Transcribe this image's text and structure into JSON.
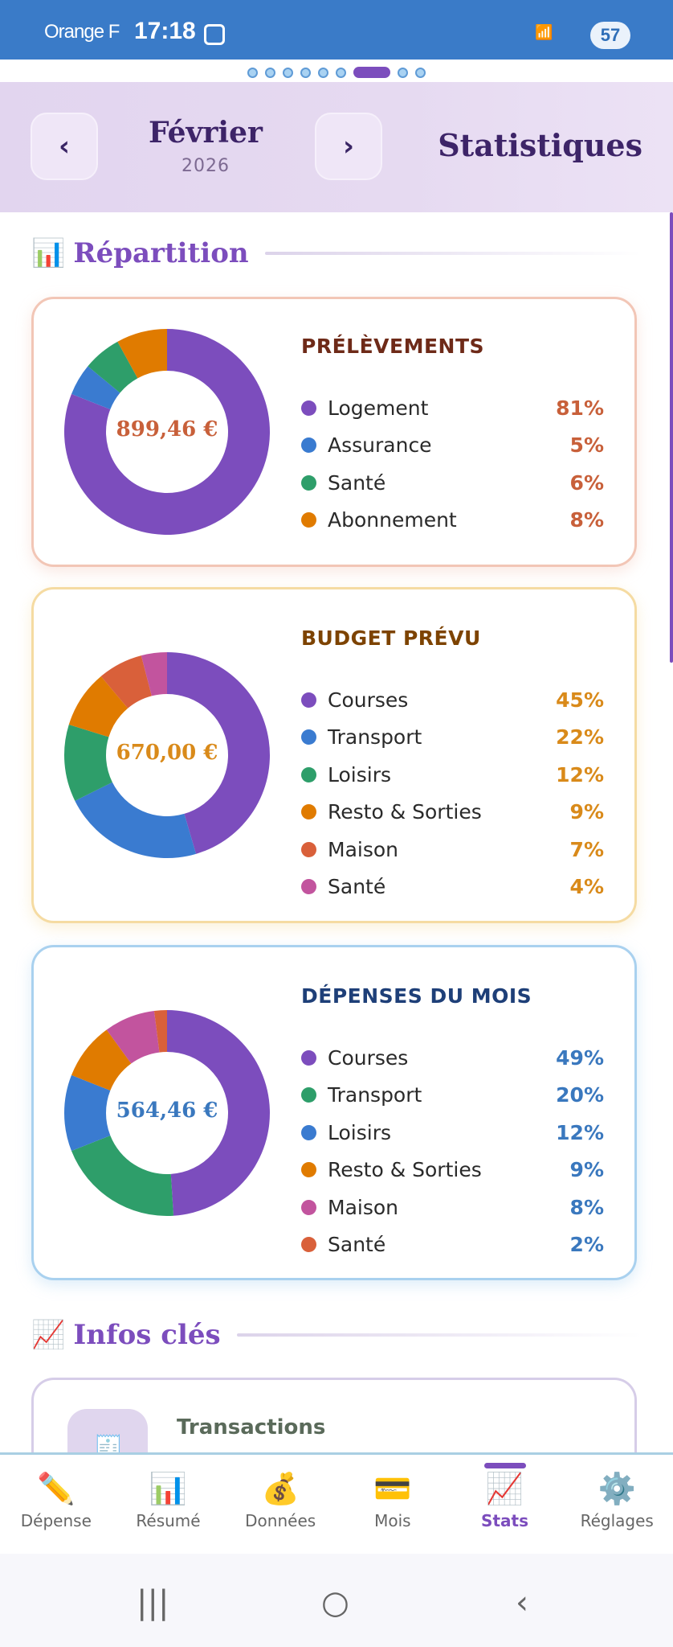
{
  "status_bar": {
    "carrier": "Orange F",
    "time": "17:18",
    "battery": "57"
  },
  "pager": {
    "count": 9,
    "active_index": 6
  },
  "header": {
    "prev_label": "‹",
    "next_label": "›",
    "month": "Février",
    "year": "2026",
    "title": "Statistiques"
  },
  "sections": {
    "repartition": {
      "icon": "📊",
      "title": "Répartition"
    },
    "infos": {
      "icon": "📈",
      "title": "Infos clés"
    }
  },
  "colors": {
    "purple": "#7c4dbd",
    "blue": "#3a7bd0",
    "green": "#2e9e6a",
    "orange": "#e07b00",
    "red": "#d9603a",
    "pink": "#c2549e"
  },
  "cards": [
    {
      "title": "PRÉLÈVEMENTS",
      "total": "899,46 €",
      "title_color": "#6e2a18",
      "accent": "#c8603a",
      "border": "#f2c6b6",
      "items": [
        {
          "label": "Logement",
          "pct": 81,
          "pct_label": "81%",
          "color": "#7c4dbd"
        },
        {
          "label": "Assurance",
          "pct": 5,
          "pct_label": "5%",
          "color": "#3a7bd0"
        },
        {
          "label": "Santé",
          "pct": 6,
          "pct_label": "6%",
          "color": "#2e9e6a"
        },
        {
          "label": "Abonnement",
          "pct": 8,
          "pct_label": "8%",
          "color": "#e07b00"
        }
      ]
    },
    {
      "title": "BUDGET PRÉVU",
      "total": "670,00 €",
      "title_color": "#7d4300",
      "accent": "#d98a1a",
      "border": "#f5dba2",
      "items": [
        {
          "label": "Courses",
          "pct": 45,
          "pct_label": "45%",
          "color": "#7c4dbd"
        },
        {
          "label": "Transport",
          "pct": 22,
          "pct_label": "22%",
          "color": "#3a7bd0"
        },
        {
          "label": "Loisirs",
          "pct": 12,
          "pct_label": "12%",
          "color": "#2e9e6a"
        },
        {
          "label": "Resto & Sorties",
          "pct": 9,
          "pct_label": "9%",
          "color": "#e07b00"
        },
        {
          "label": "Maison",
          "pct": 7,
          "pct_label": "7%",
          "color": "#d9603a"
        },
        {
          "label": "Santé",
          "pct": 4,
          "pct_label": "4%",
          "color": "#c2549e"
        }
      ]
    },
    {
      "title": "DÉPENSES DU MOIS",
      "total": "564,46 €",
      "title_color": "#1e3f78",
      "accent": "#3a78be",
      "border": "#a9d1ef",
      "items": [
        {
          "label": "Courses",
          "pct": 49,
          "pct_label": "49%",
          "color": "#7c4dbd"
        },
        {
          "label": "Transport",
          "pct": 20,
          "pct_label": "20%",
          "color": "#2e9e6a"
        },
        {
          "label": "Loisirs",
          "pct": 12,
          "pct_label": "12%",
          "color": "#3a7bd0"
        },
        {
          "label": "Resto & Sorties",
          "pct": 9,
          "pct_label": "9%",
          "color": "#e07b00"
        },
        {
          "label": "Maison",
          "pct": 8,
          "pct_label": "8%",
          "color": "#c2549e"
        },
        {
          "label": "Santé",
          "pct": 2,
          "pct_label": "2%",
          "color": "#d9603a"
        }
      ]
    }
  ],
  "info_card": {
    "icon": "🧾",
    "label": "Transactions"
  },
  "bottom_nav": [
    {
      "icon": "✏️",
      "label": "Dépense"
    },
    {
      "icon": "📊",
      "label": "Résumé"
    },
    {
      "icon": "💰",
      "label": "Données"
    },
    {
      "icon": "💳",
      "label": "Mois"
    },
    {
      "icon": "📈",
      "label": "Stats",
      "active": true
    },
    {
      "icon": "⚙️",
      "label": "Réglages"
    }
  ],
  "system_nav": {
    "recents": "|||",
    "home": "○",
    "back": "‹"
  }
}
